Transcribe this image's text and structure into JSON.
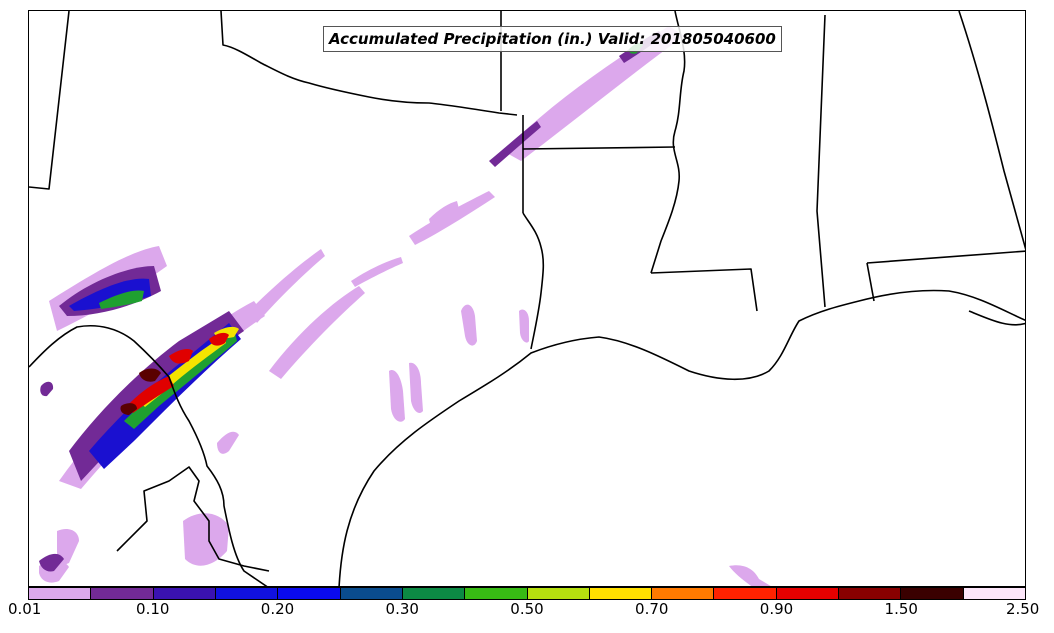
{
  "title": "Accumulated Precipitation (in.) Valid: 201805040600",
  "colorbar": {
    "colors": [
      "#dca8ec",
      "#722a96",
      "#3a12b0",
      "#1111de",
      "#0a0aee",
      "#0a4c8e",
      "#0c8a44",
      "#38bb14",
      "#b6e00f",
      "#ffe000",
      "#ff7a00",
      "#ff2200",
      "#e60000",
      "#880000",
      "#3a0000",
      "#fde6fa"
    ],
    "tick_labels": [
      "0.01",
      "0.10",
      "0.20",
      "0.30",
      "0.50",
      "0.70",
      "0.90",
      "1.50",
      "2.50"
    ]
  },
  "legend_colors": {
    "light": "#dca8ec",
    "purple": "#722a96",
    "blue": "#1a10d0",
    "green": "#1fa030",
    "yellow": "#f4e400",
    "red": "#e00000",
    "dark": "#5a0000"
  }
}
